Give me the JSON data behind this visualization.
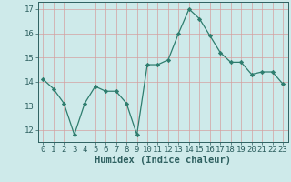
{
  "x": [
    0,
    1,
    2,
    3,
    4,
    5,
    6,
    7,
    8,
    9,
    10,
    11,
    12,
    13,
    14,
    15,
    16,
    17,
    18,
    19,
    20,
    21,
    22,
    23
  ],
  "y": [
    14.1,
    13.7,
    13.1,
    11.8,
    13.1,
    13.8,
    13.6,
    13.6,
    13.1,
    11.8,
    14.7,
    14.7,
    14.9,
    16.0,
    17.0,
    16.6,
    15.9,
    15.2,
    14.8,
    14.8,
    14.3,
    14.4,
    14.4,
    13.9
  ],
  "xlim": [
    -0.5,
    23.5
  ],
  "ylim": [
    11.5,
    17.3
  ],
  "yticks": [
    12,
    13,
    14,
    15,
    16,
    17
  ],
  "xticks": [
    0,
    1,
    2,
    3,
    4,
    5,
    6,
    7,
    8,
    9,
    10,
    11,
    12,
    13,
    14,
    15,
    16,
    17,
    18,
    19,
    20,
    21,
    22,
    23
  ],
  "xlabel": "Humidex (Indice chaleur)",
  "line_color": "#2e7d6e",
  "marker": "D",
  "marker_size": 2.2,
  "bg_color": "#ceeaea",
  "grid_color": "#d4a0a0",
  "axis_color": "#2e6060",
  "xlabel_fontsize": 7.5,
  "tick_fontsize": 6.5
}
